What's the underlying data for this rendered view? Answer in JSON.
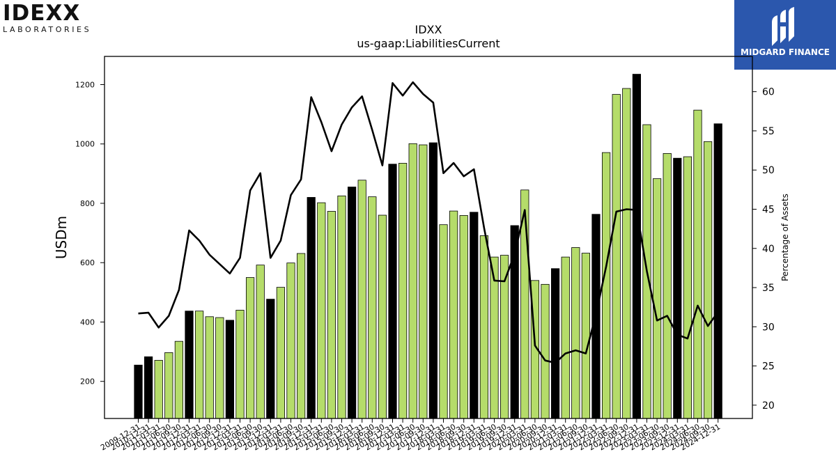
{
  "logos": {
    "left_brand": "IDEXX",
    "left_sub": "LABORATORIES",
    "right_name": "MIDGARD FINANCE"
  },
  "colors": {
    "bar_regular": "#b5dc6a",
    "bar_highlight": "#000000",
    "line": "#000000"
  },
  "chart_data": {
    "type": "bar",
    "title": "IDXX",
    "subtitle": "us-gaap:LiabilitiesCurrent",
    "ylabel": "USDm",
    "y2label": "Percentage of Assets",
    "ylim": [
      75,
      1295
    ],
    "y2lim": [
      18.3,
      64.5
    ],
    "yticks": [
      200,
      400,
      600,
      800,
      1000,
      1200
    ],
    "y2ticks": [
      20,
      25,
      30,
      35,
      40,
      45,
      50,
      55,
      60
    ],
    "categories": [
      "2009-12-31",
      "2010-12-31",
      "2011-03-31",
      "2011-06-30",
      "2011-09-30",
      "2011-12-31",
      "2012-03-31",
      "2012-06-30",
      "2012-09-30",
      "2012-12-31",
      "2013-03-31",
      "2013-06-30",
      "2013-09-30",
      "2013-12-31",
      "2014-03-31",
      "2014-06-30",
      "2014-09-30",
      "2014-12-31",
      "2015-03-31",
      "2015-06-30",
      "2015-09-30",
      "2015-12-31",
      "2016-03-31",
      "2016-06-30",
      "2016-09-30",
      "2016-12-31",
      "2017-03-31",
      "2017-06-30",
      "2017-09-30",
      "2017-12-31",
      "2018-03-31",
      "2018-06-30",
      "2018-09-30",
      "2018-12-31",
      "2019-03-31",
      "2019-06-30",
      "2019-09-30",
      "2019-12-31",
      "2020-03-31",
      "2020-06-30",
      "2020-09-30",
      "2020-12-31",
      "2021-03-31",
      "2021-06-30",
      "2021-09-30",
      "2021-12-31",
      "2022-03-31",
      "2022-06-30",
      "2022-09-30",
      "2022-12-31",
      "2023-03-31",
      "2023-06-30",
      "2023-09-30",
      "2023-12-31",
      "2024-03-31",
      "2024-06-30",
      "2024-09-30",
      "2024-12-31"
    ],
    "series": [
      {
        "kind": "bar",
        "axis": "left",
        "values": [
          255,
          283,
          271,
          297,
          335,
          437,
          437,
          418,
          415,
          406,
          440,
          550,
          592,
          477,
          517,
          599,
          631,
          820,
          802,
          773,
          825,
          855,
          878,
          822,
          760,
          932,
          935,
          1001,
          997,
          1004,
          728,
          774,
          759,
          770,
          691,
          619,
          625,
          725,
          845,
          540,
          527,
          580,
          619,
          651,
          632,
          763,
          971,
          1167,
          1187,
          1235,
          1065,
          883,
          968,
          952,
          957,
          1114,
          1008,
          1068
        ],
        "highlight": [
          true,
          true,
          false,
          false,
          false,
          true,
          false,
          false,
          false,
          true,
          false,
          false,
          false,
          true,
          false,
          false,
          false,
          true,
          false,
          false,
          false,
          true,
          false,
          false,
          false,
          true,
          false,
          false,
          false,
          true,
          false,
          false,
          false,
          true,
          false,
          false,
          false,
          true,
          false,
          false,
          false,
          true,
          false,
          false,
          false,
          true,
          false,
          false,
          false,
          true,
          false,
          false,
          false,
          true,
          false,
          false,
          false,
          true
        ]
      },
      {
        "kind": "line",
        "axis": "right",
        "values": [
          31.7,
          31.8,
          29.9,
          31.4,
          34.7,
          42.3,
          41.0,
          39.2,
          38.0,
          36.8,
          38.8,
          47.4,
          49.6,
          38.8,
          41.0,
          46.8,
          48.8,
          59.3,
          56.1,
          52.4,
          55.8,
          58.0,
          59.4,
          55.1,
          50.6,
          61.1,
          59.5,
          61.2,
          59.7,
          58.6,
          49.6,
          50.9,
          49.2,
          50.1,
          42.6,
          35.9,
          35.8,
          39.3,
          44.9,
          27.6,
          25.7,
          25.4,
          26.6,
          27.0,
          26.6,
          31.6,
          37.7,
          44.7,
          45.0,
          44.9,
          37.1,
          30.8,
          31.4,
          29.0,
          28.5,
          32.7,
          30.1,
          31.9
        ]
      }
    ]
  }
}
